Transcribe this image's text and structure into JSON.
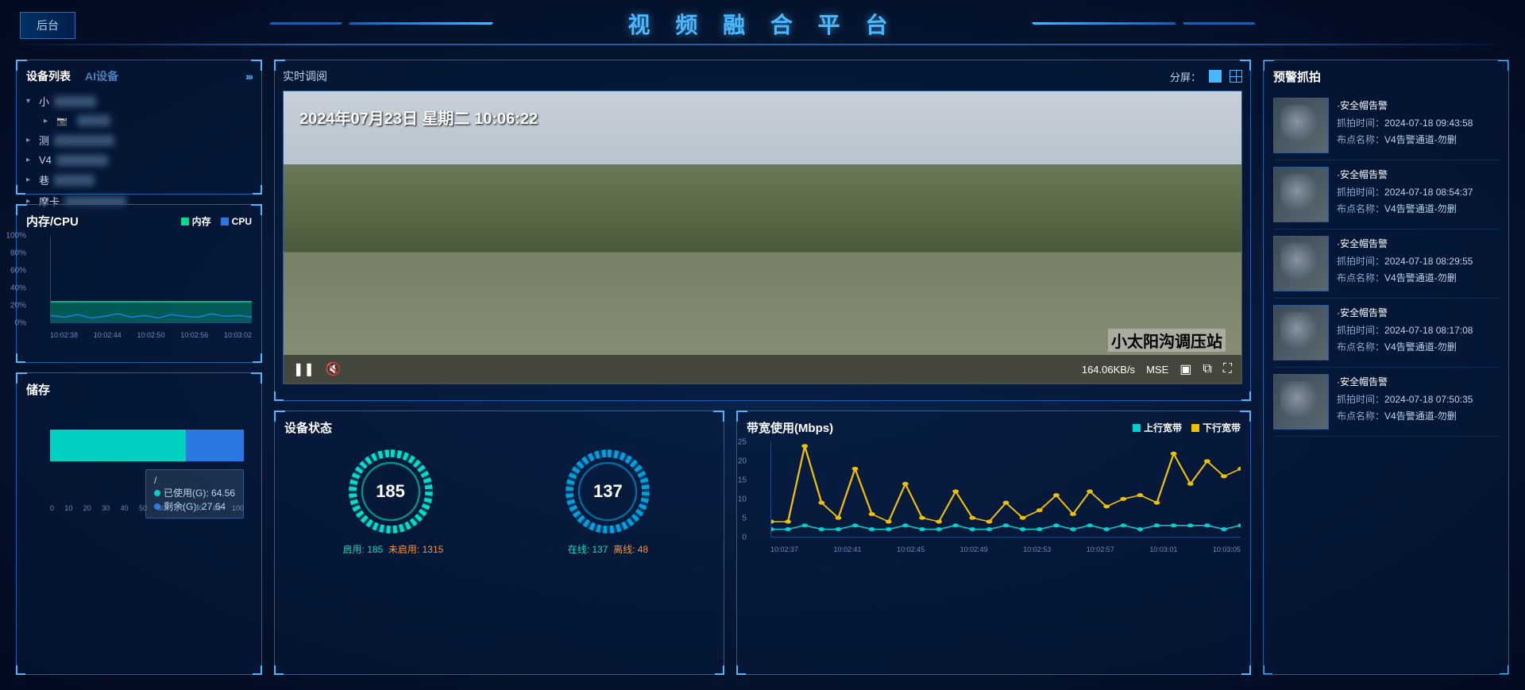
{
  "header": {
    "title": "视 频 融 合 平 台",
    "back": "后台"
  },
  "devicePanel": {
    "tabs": [
      "设备列表",
      "AI设备"
    ],
    "activeTab": 0,
    "items": [
      {
        "icon": "▾",
        "label": "小"
      },
      {
        "icon": "",
        "label": "",
        "indent": true,
        "dev": true
      },
      {
        "icon": "▸",
        "label": "测"
      },
      {
        "icon": "▸",
        "label": "V4"
      },
      {
        "icon": "▸",
        "label": "巷"
      },
      {
        "icon": "▸",
        "label": "摩卡"
      }
    ]
  },
  "memCpu": {
    "title": "内存/CPU",
    "legend": [
      {
        "label": "内存",
        "color": "#00d890"
      },
      {
        "label": "CPU",
        "color": "#2a78e0"
      }
    ],
    "yTicks": [
      "100%",
      "80%",
      "60%",
      "40%",
      "20%",
      "0%"
    ],
    "xTicks": [
      "10:02:38",
      "10:02:44",
      "10:02:50",
      "10:02:56",
      "10:03:02"
    ],
    "ylim": [
      0,
      100
    ],
    "memSeries": [
      24,
      24,
      24,
      24,
      24,
      24,
      24,
      24,
      24,
      24,
      24,
      24,
      24,
      24,
      24,
      24
    ],
    "cpuSeries": [
      8,
      6,
      9,
      5,
      7,
      10,
      6,
      8,
      5,
      9,
      7,
      6,
      10,
      7,
      8,
      6
    ],
    "memFill": "rgba(0,216,144,0.35)",
    "memStroke": "#00d890",
    "cpuStroke": "#2a78e0"
  },
  "storage": {
    "title": "储存",
    "xTicks": [
      "0",
      "10",
      "20",
      "30",
      "40",
      "50",
      "60",
      "70",
      "80",
      "90",
      "100"
    ],
    "used": {
      "label": "已使用(G):",
      "value": "64.56",
      "color": "#00d0c0"
    },
    "free": {
      "label": "剩余(G):",
      "value": "27.64",
      "color": "#2a78e0"
    },
    "tooltipTitle": "/",
    "usedPct": 70,
    "freePct": 30,
    "total": 92.2
  },
  "video": {
    "title": "实时调阅",
    "splitLabel": "分屏：",
    "timestamp": "2024年07月23日 星期二 10:06:22",
    "stationName": "小太阳沟调压站",
    "bitrate": "164.06KB/s",
    "codec": "MSE"
  },
  "status": {
    "title": "设备状态",
    "gauges": [
      {
        "value": "185",
        "onLabel": "启用:",
        "onVal": "185",
        "offLabel": "未启用:",
        "offVal": "1315",
        "color": "#00e0c0"
      },
      {
        "value": "137",
        "onLabel": "在线:",
        "onVal": "137",
        "offLabel": "离线:",
        "offVal": "48",
        "color": "#00a0e0"
      }
    ]
  },
  "bandwidth": {
    "title": "带宽使用(Mbps)",
    "legend": [
      {
        "label": "上行宽带",
        "color": "#00d0d0"
      },
      {
        "label": "下行宽带",
        "color": "#f0c000"
      }
    ],
    "yTicks": [
      "25",
      "20",
      "15",
      "10",
      "5",
      "0"
    ],
    "ylim": [
      0,
      25
    ],
    "xTicks": [
      "10:02:37",
      "10:02:41",
      "10:02:45",
      "10:02:49",
      "10:02:53",
      "10:02:57",
      "10:03:01",
      "10:03:05"
    ],
    "up": [
      2,
      2,
      3,
      2,
      2,
      3,
      2,
      2,
      3,
      2,
      2,
      3,
      2,
      2,
      3,
      2,
      2,
      3,
      2,
      3,
      2,
      3,
      2,
      3,
      3,
      3,
      3,
      2,
      3
    ],
    "down": [
      4,
      4,
      24,
      9,
      5,
      18,
      6,
      4,
      14,
      5,
      4,
      12,
      5,
      4,
      9,
      5,
      7,
      11,
      6,
      12,
      8,
      10,
      11,
      9,
      22,
      14,
      20,
      16,
      18
    ]
  },
  "alerts": {
    "title": "预警抓拍",
    "timeLabel": "抓拍时间：",
    "pointLabel": "布点名称：",
    "items": [
      {
        "title": "·安全帽告警",
        "time": "2024-07-18 09:43:58",
        "point": "V4告警通道-勿删"
      },
      {
        "title": "·安全帽告警",
        "time": "2024-07-18 08:54:37",
        "point": "V4告警通道-勿删"
      },
      {
        "title": "·安全帽告警",
        "time": "2024-07-18 08:29:55",
        "point": "V4告警通道-勿删"
      },
      {
        "title": "·安全帽告警",
        "time": "2024-07-18 08:17:08",
        "point": "V4告警通道-勿删"
      },
      {
        "title": "·安全帽告警",
        "time": "2024-07-18 07:50:35",
        "point": "V4告警通道-勿删"
      }
    ]
  }
}
